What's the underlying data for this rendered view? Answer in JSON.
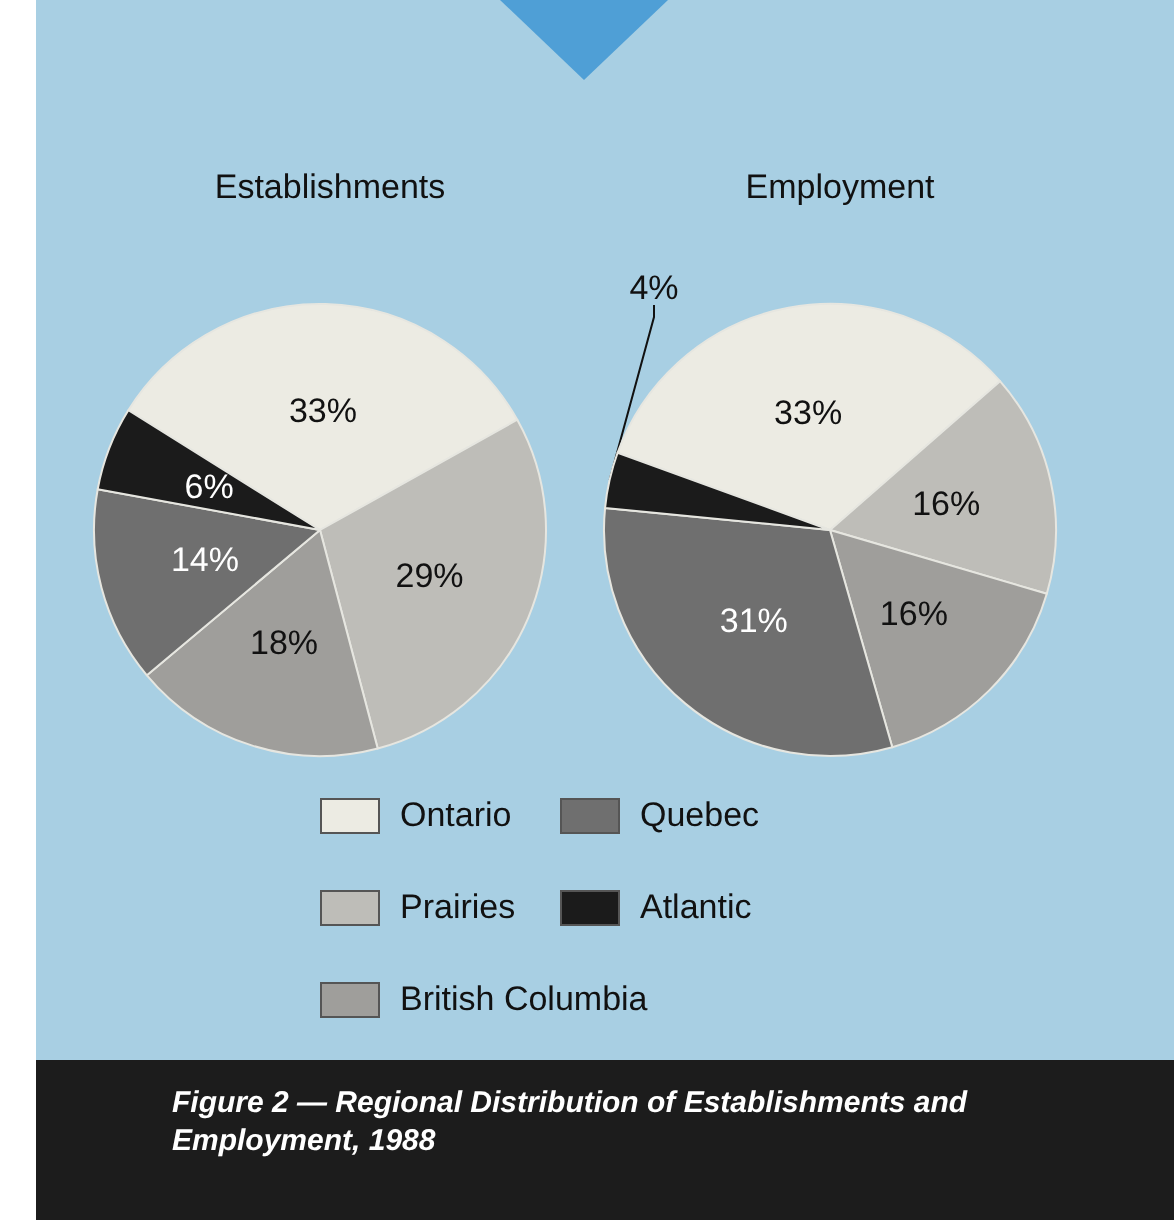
{
  "chart_data": {
    "type": "pie",
    "categories": [
      "Ontario",
      "Prairies",
      "British Columbia",
      "Quebec",
      "Atlantic"
    ],
    "colors": [
      "#ecebe3",
      "#bebdb8",
      "#9f9e9b",
      "#6f6f6f",
      "#1b1b1b"
    ],
    "legend": "bottom",
    "annotations": [
      "Figure 2 — Regional Distribution of Establishments and Employment, 1988"
    ],
    "series": [
      {
        "name": "Establishments",
        "values": [
          33,
          29,
          18,
          14,
          6
        ],
        "value_labels": [
          "33%",
          "29%",
          "18%",
          "14%",
          "6%"
        ]
      },
      {
        "name": "Employment",
        "values": [
          33,
          16,
          16,
          31,
          4
        ],
        "value_labels": [
          "33%",
          "16%",
          "16%",
          "31%",
          "4%"
        ]
      }
    ]
  }
}
